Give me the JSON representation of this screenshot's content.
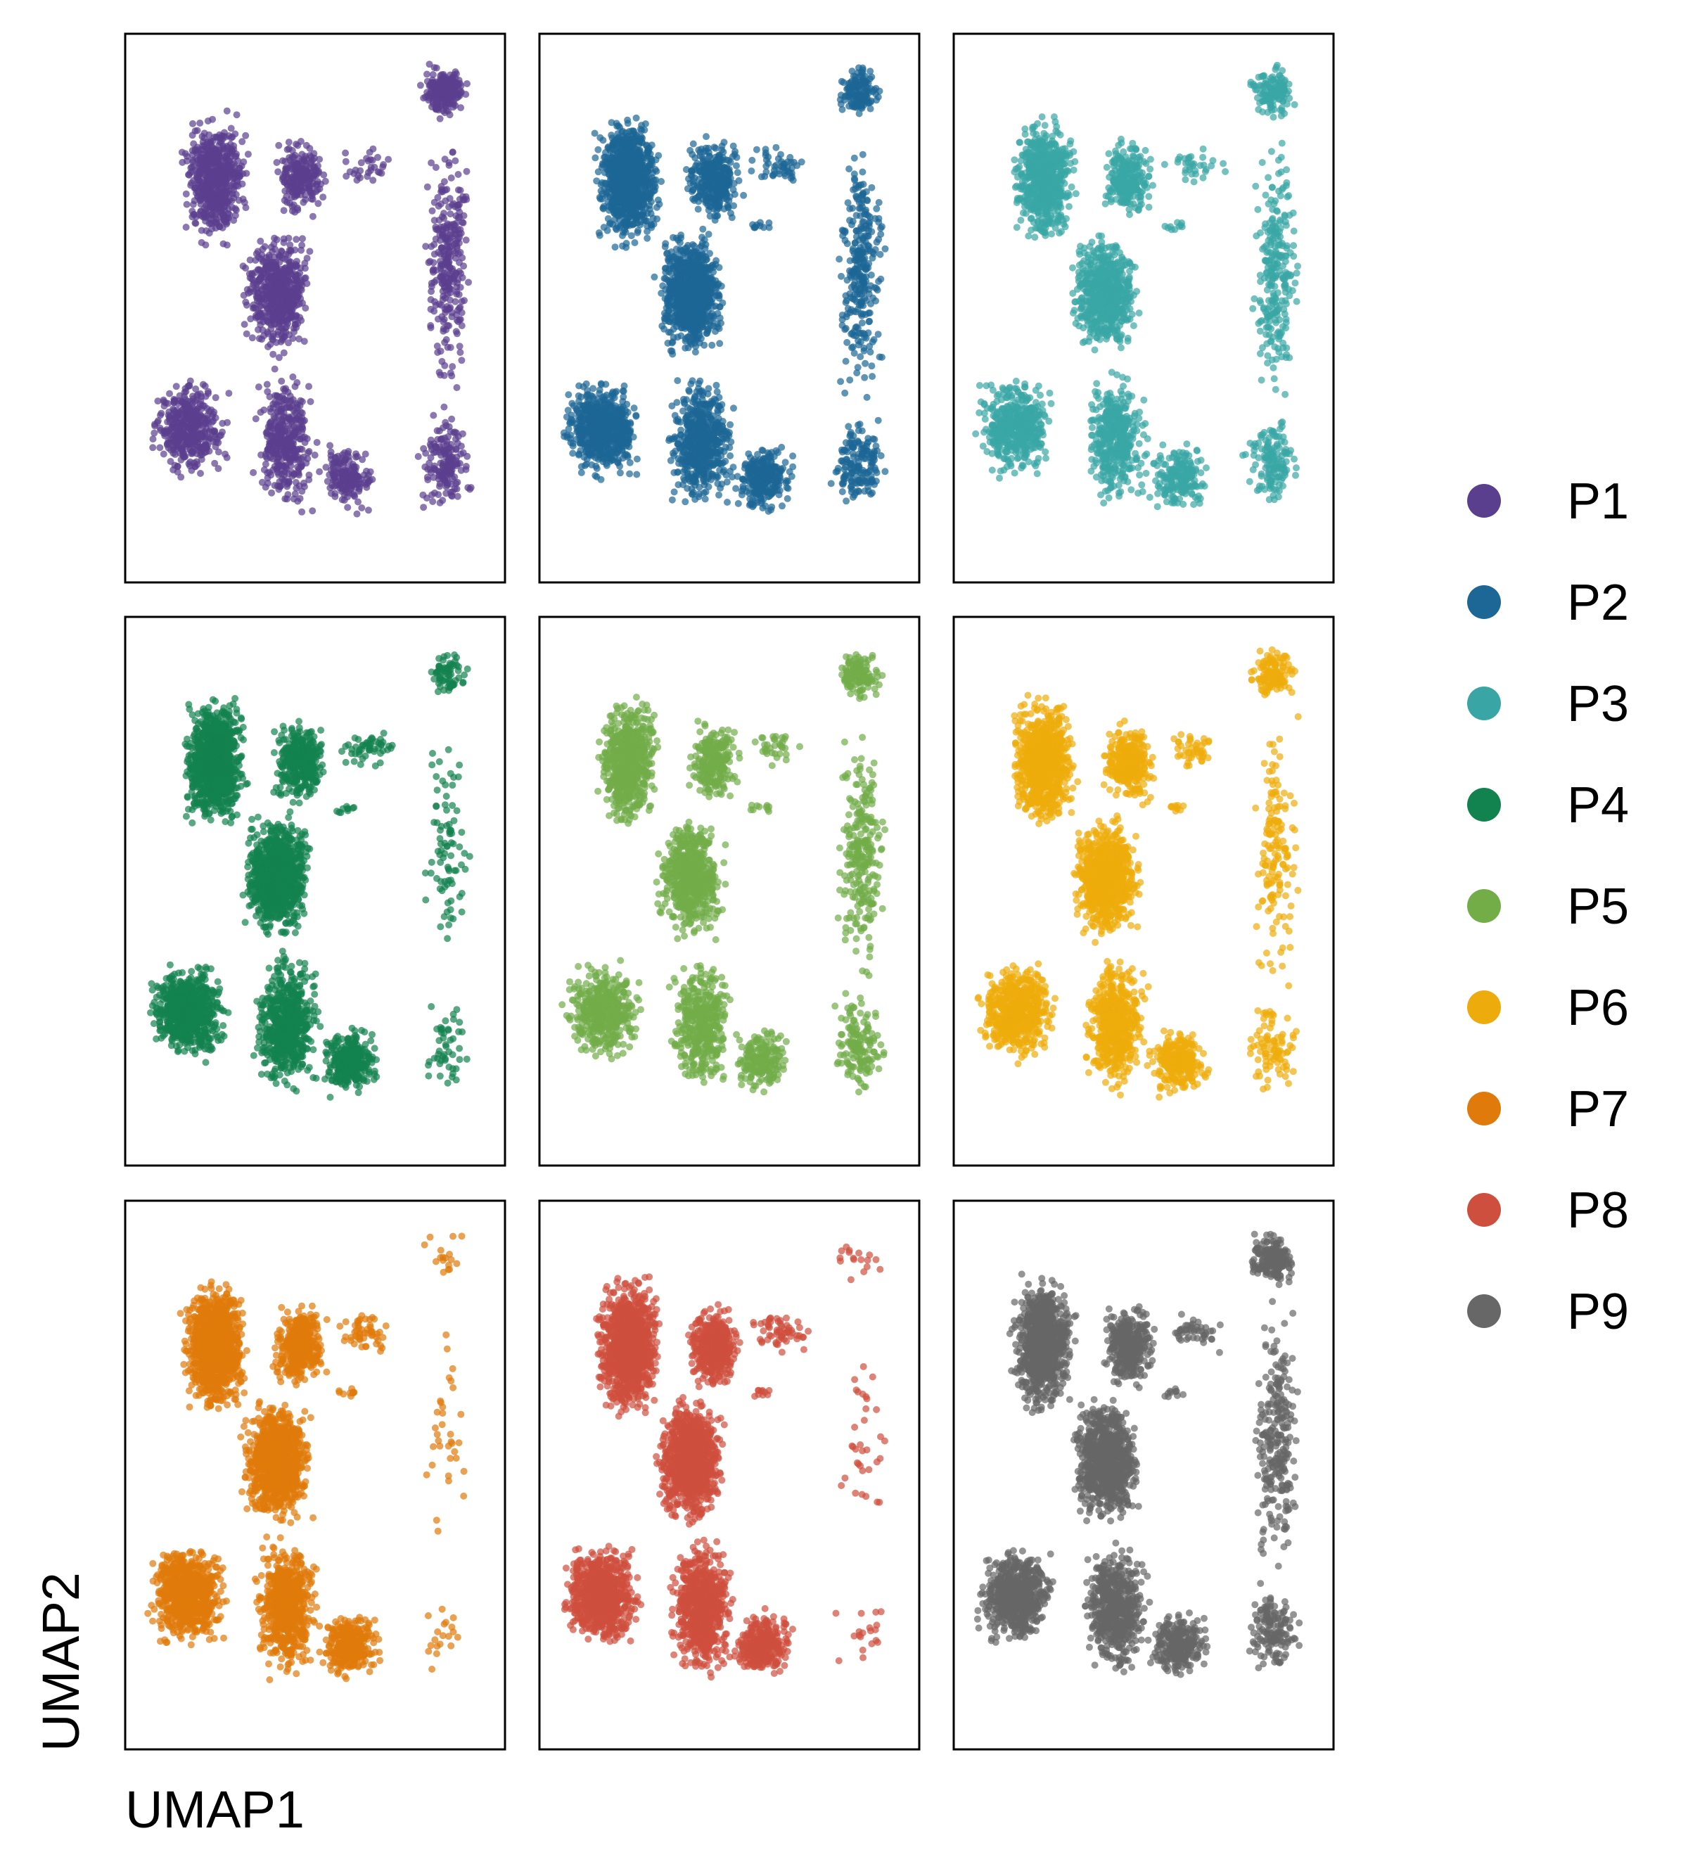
{
  "chart_data": {
    "type": "scatter",
    "layout": "3x3 facet grid, one panel per sample, axes without ticks",
    "xlabel": "UMAP1",
    "ylabel": "UMAP2",
    "xlim": [
      0,
      1
    ],
    "ylim": [
      0,
      1
    ],
    "grid": false,
    "legend_position": "right",
    "point_alpha": 0.7,
    "panels": [
      {
        "name": "P1",
        "color": "#5b3f8f",
        "density": 0.85,
        "right_density": 1.0,
        "top_right_cluster": true,
        "island": false
      },
      {
        "name": "P2",
        "color": "#1d6796",
        "density": 1.35,
        "right_density": 1.0,
        "top_right_cluster": false,
        "island": true
      },
      {
        "name": "P3",
        "color": "#39a6a5",
        "density": 0.95,
        "right_density": 0.9,
        "top_right_cluster": false,
        "island": true
      },
      {
        "name": "P4",
        "color": "#12824f",
        "density": 1.45,
        "right_density": 0.3,
        "top_right_cluster": true,
        "island": true
      },
      {
        "name": "P5",
        "color": "#72ad48",
        "density": 0.95,
        "right_density": 0.9,
        "top_right_cluster": false,
        "island": true
      },
      {
        "name": "P6",
        "color": "#eeac0c",
        "density": 1.25,
        "right_density": 0.55,
        "top_right_cluster": true,
        "island": true
      },
      {
        "name": "P7",
        "color": "#e07a0a",
        "density": 1.5,
        "right_density": 0.12,
        "top_right_cluster": false,
        "island": true
      },
      {
        "name": "P8",
        "color": "#ce4f3d",
        "density": 1.65,
        "right_density": 0.12,
        "top_right_cluster": false,
        "island": true
      },
      {
        "name": "P9",
        "color": "#676767",
        "density": 1.35,
        "right_density": 0.9,
        "top_right_cluster": true,
        "island": true
      }
    ],
    "clusters": [
      {
        "name": "upper-left lobe",
        "x": [
          0.14,
          0.33
        ],
        "y": [
          0.6,
          0.87
        ],
        "points": 700
      },
      {
        "name": "central body",
        "x": [
          0.3,
          0.5
        ],
        "y": [
          0.4,
          0.65
        ],
        "points": 650
      },
      {
        "name": "left tail",
        "x": [
          0.05,
          0.28
        ],
        "y": [
          0.18,
          0.38
        ],
        "points": 480
      },
      {
        "name": "middle tail",
        "x": [
          0.33,
          0.52
        ],
        "y": [
          0.12,
          0.4
        ],
        "points": 420
      },
      {
        "name": "lower-right lobe",
        "x": [
          0.5,
          0.68
        ],
        "y": [
          0.12,
          0.26
        ],
        "points": 200
      },
      {
        "name": "upper-middle arm",
        "x": [
          0.38,
          0.54
        ],
        "y": [
          0.65,
          0.82
        ],
        "points": 250
      },
      {
        "name": "bridge",
        "x": [
          0.54,
          0.72
        ],
        "y": [
          0.72,
          0.8
        ],
        "points": 35
      },
      {
        "name": "right top",
        "x": [
          0.77,
          0.91
        ],
        "y": [
          0.84,
          0.95
        ],
        "points": 140
      },
      {
        "name": "right column",
        "x": [
          0.78,
          0.92
        ],
        "y": [
          0.3,
          0.84
        ],
        "points": 280
      },
      {
        "name": "right bottom",
        "x": [
          0.76,
          0.92
        ],
        "y": [
          0.12,
          0.32
        ],
        "points": 160
      }
    ]
  },
  "legend": {
    "items": [
      {
        "label": "P1",
        "color": "#5b3f8f"
      },
      {
        "label": "P2",
        "color": "#1d6796"
      },
      {
        "label": "P3",
        "color": "#39a6a5"
      },
      {
        "label": "P4",
        "color": "#12824f"
      },
      {
        "label": "P5",
        "color": "#72ad48"
      },
      {
        "label": "P6",
        "color": "#eeac0c"
      },
      {
        "label": "P7",
        "color": "#e07a0a"
      },
      {
        "label": "P8",
        "color": "#ce4f3d"
      },
      {
        "label": "P9",
        "color": "#676767"
      }
    ]
  }
}
